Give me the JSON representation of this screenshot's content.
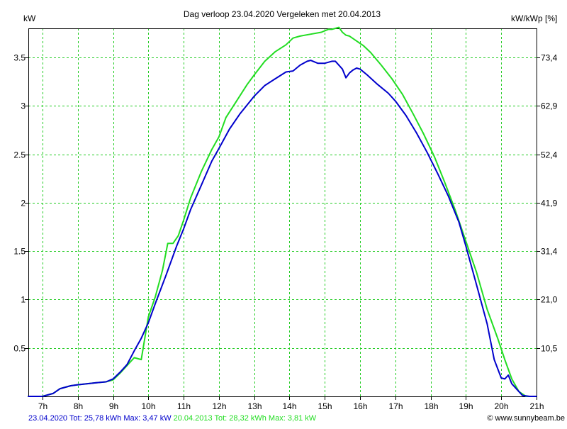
{
  "chart_data": {
    "type": "line",
    "title": "Dag  verloop 23.04.2020   Vergeleken met 20.04.2013",
    "ylabel_left": "kW",
    "ylabel_right": "kW/kWp [%]",
    "xlim": [
      6.6,
      21.0
    ],
    "ylim": [
      0,
      3.8
    ],
    "x_ticks": [
      7,
      8,
      9,
      10,
      11,
      12,
      13,
      14,
      15,
      16,
      17,
      18,
      19,
      20,
      21
    ],
    "x_tick_labels": [
      "7h",
      "8h",
      "9h",
      "10h",
      "11h",
      "12h",
      "13h",
      "14h",
      "15h",
      "16h",
      "17h",
      "18h",
      "19h",
      "20h",
      "21h"
    ],
    "y_ticks_left": [
      0.5,
      1,
      1.5,
      2,
      2.5,
      3,
      3.5
    ],
    "y_tick_labels_left": [
      "0.5",
      "1",
      "1.5",
      "2",
      "2.5",
      "3",
      "3.5"
    ],
    "y_tick_labels_right": [
      "10,5",
      "21,0",
      "31,4",
      "41,9",
      "52,4",
      "62,9",
      "73,4"
    ],
    "grid": true,
    "series": [
      {
        "name": "23.04.2020",
        "color": "#0000cc",
        "x": [
          6.6,
          7.0,
          7.3,
          7.5,
          7.8,
          8.0,
          8.5,
          8.8,
          9.0,
          9.2,
          9.4,
          9.6,
          9.8,
          10.0,
          10.2,
          10.5,
          10.8,
          11.0,
          11.2,
          11.5,
          11.8,
          12.0,
          12.3,
          12.6,
          13.0,
          13.3,
          13.6,
          13.9,
          14.1,
          14.3,
          14.5,
          14.6,
          14.8,
          15.0,
          15.2,
          15.3,
          15.4,
          15.5,
          15.6,
          15.7,
          15.8,
          15.9,
          16.0,
          16.2,
          16.5,
          16.8,
          17.0,
          17.3,
          17.6,
          17.9,
          18.2,
          18.5,
          18.8,
          19.0,
          19.3,
          19.6,
          19.8,
          20.0,
          20.1,
          20.2,
          20.3,
          20.5,
          20.6,
          20.8,
          21.0
        ],
        "y": [
          0.0,
          0.0,
          0.03,
          0.08,
          0.11,
          0.12,
          0.14,
          0.15,
          0.18,
          0.25,
          0.33,
          0.47,
          0.6,
          0.76,
          0.96,
          1.25,
          1.55,
          1.73,
          1.93,
          2.18,
          2.43,
          2.56,
          2.76,
          2.92,
          3.1,
          3.21,
          3.28,
          3.35,
          3.36,
          3.42,
          3.46,
          3.47,
          3.44,
          3.44,
          3.46,
          3.46,
          3.42,
          3.38,
          3.29,
          3.34,
          3.37,
          3.39,
          3.38,
          3.32,
          3.22,
          3.13,
          3.05,
          2.9,
          2.72,
          2.52,
          2.3,
          2.07,
          1.8,
          1.55,
          1.15,
          0.75,
          0.38,
          0.19,
          0.18,
          0.22,
          0.13,
          0.05,
          0.01,
          0.0,
          0.0
        ]
      },
      {
        "name": "20.04.2013",
        "color": "#22dd22",
        "x": [
          6.6,
          7.0,
          7.3,
          7.5,
          7.8,
          8.0,
          8.5,
          8.8,
          9.0,
          9.2,
          9.4,
          9.6,
          9.8,
          10.0,
          10.2,
          10.4,
          10.55,
          10.7,
          10.85,
          11.0,
          11.2,
          11.5,
          11.8,
          12.0,
          12.2,
          12.5,
          12.8,
          13.0,
          13.3,
          13.6,
          13.9,
          14.1,
          14.3,
          14.6,
          14.9,
          15.1,
          15.2,
          15.3,
          15.4,
          15.5,
          15.6,
          15.7,
          15.9,
          16.1,
          16.3,
          16.6,
          16.9,
          17.2,
          17.5,
          17.8,
          18.1,
          18.4,
          18.7,
          19.0,
          19.3,
          19.6,
          19.9,
          20.1,
          20.3,
          20.5,
          20.7,
          20.9,
          21.0
        ],
        "y": [
          0.0,
          0.0,
          0.03,
          0.08,
          0.11,
          0.12,
          0.14,
          0.15,
          0.17,
          0.24,
          0.32,
          0.4,
          0.38,
          0.82,
          1.03,
          1.3,
          1.58,
          1.58,
          1.66,
          1.82,
          2.05,
          2.32,
          2.55,
          2.68,
          2.88,
          3.05,
          3.22,
          3.32,
          3.46,
          3.56,
          3.63,
          3.7,
          3.72,
          3.74,
          3.76,
          3.79,
          3.79,
          3.8,
          3.81,
          3.76,
          3.73,
          3.72,
          3.67,
          3.62,
          3.55,
          3.42,
          3.28,
          3.12,
          2.92,
          2.71,
          2.48,
          2.21,
          1.92,
          1.6,
          1.28,
          0.9,
          0.6,
          0.38,
          0.18,
          0.05,
          0.0,
          0.0,
          0.0
        ]
      }
    ]
  },
  "footer": {
    "series1_text": "23.04.2020 Tot: 25,78 kWh Max: 3,47 kW",
    "series2_text": "20.04.2013 Tot: 28,32 kWh Max: 3,81 kW",
    "series1_color": "#0000cc",
    "series2_color": "#22dd22",
    "website": "© www.sunnybeam.be"
  }
}
